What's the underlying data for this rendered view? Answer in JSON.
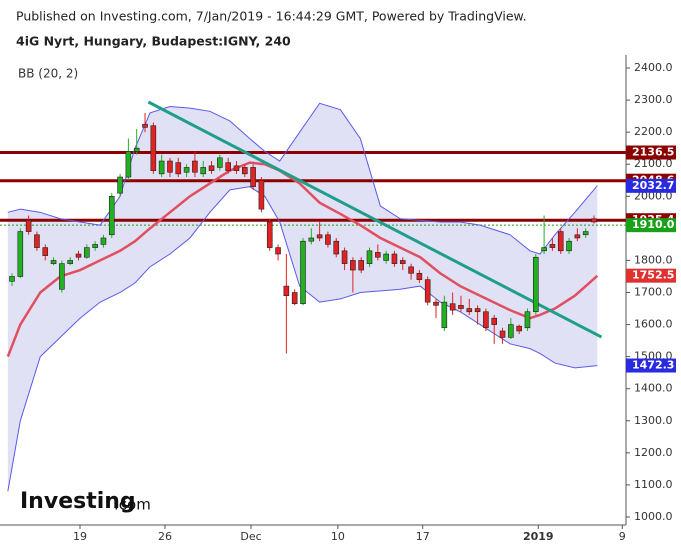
{
  "chart_data": {
    "type": "candlestick",
    "publisher": "Published on Investing.com, 7/Jan/2019 - 16:44:29 GMT, Powered by TradingView.",
    "title": "4iG Nyrt, Hungary, Budapest:IGNY, 240",
    "indicator": "BB (20, 2)",
    "logo": {
      "name": "Investing",
      "suffix": ".com"
    },
    "up_color": "#22b022",
    "down_color": "#e02222",
    "open": [
      1735,
      1750,
      1925,
      1880,
      1840,
      1790,
      1710,
      1790,
      1820,
      1810,
      1840,
      1850,
      1880,
      2010,
      2060,
      2140,
      2225,
      2220,
      2070,
      2110,
      2105,
      2075,
      2110,
      2070,
      2095,
      2090,
      2105,
      2095,
      2090,
      2090,
      2050,
      1920,
      1840,
      1720,
      1700,
      1665,
      1860,
      1880,
      1880,
      1860,
      1830,
      1800,
      1800,
      1790,
      1825,
      1800,
      1820,
      1800,
      1780,
      1760,
      1740,
      1670,
      1590,
      1665,
      1660,
      1650,
      1650,
      1640,
      1620,
      1580,
      1560,
      1595,
      1590,
      1640,
      1830,
      1850,
      1890,
      1830,
      1880,
      1880,
      1930
    ],
    "high": [
      1760,
      1900,
      1940,
      1890,
      1850,
      1810,
      1800,
      1810,
      1830,
      1850,
      1860,
      1880,
      2010,
      2070,
      2180,
      2210,
      2260,
      2230,
      2130,
      2120,
      2120,
      2100,
      2140,
      2110,
      2110,
      2130,
      2120,
      2110,
      2100,
      2100,
      2060,
      1930,
      1850,
      1820,
      1710,
      1870,
      1900,
      1920,
      1890,
      1870,
      1840,
      1810,
      1810,
      1840,
      1850,
      1830,
      1830,
      1810,
      1790,
      1770,
      1750,
      1680,
      1690,
      1700,
      1690,
      1680,
      1660,
      1650,
      1630,
      1590,
      1620,
      1600,
      1650,
      1820,
      1940,
      1870,
      1900,
      1870,
      1900,
      1900,
      1940
    ],
    "low": [
      1720,
      1745,
      1880,
      1830,
      1800,
      1785,
      1700,
      1785,
      1800,
      1805,
      1830,
      1840,
      1870,
      2000,
      2050,
      2130,
      2200,
      2070,
      2060,
      2060,
      2060,
      2060,
      2060,
      2060,
      2070,
      2080,
      2070,
      2070,
      2060,
      2020,
      1950,
      1830,
      1800,
      1510,
      1660,
      1660,
      1850,
      1860,
      1840,
      1810,
      1770,
      1700,
      1760,
      1780,
      1800,
      1790,
      1780,
      1770,
      1740,
      1730,
      1660,
      1620,
      1580,
      1630,
      1640,
      1630,
      1600,
      1580,
      1540,
      1540,
      1555,
      1570,
      1580,
      1630,
      1820,
      1830,
      1820,
      1820,
      1860,
      1870,
      1915
    ],
    "close": [
      1750,
      1890,
      1890,
      1840,
      1815,
      1800,
      1790,
      1800,
      1810,
      1840,
      1850,
      1870,
      2000,
      2060,
      2140,
      2150,
      2215,
      2080,
      2110,
      2075,
      2070,
      2090,
      2075,
      2090,
      2080,
      2120,
      2080,
      2080,
      2070,
      2030,
      1960,
      1840,
      1820,
      1690,
      1665,
      1860,
      1870,
      1870,
      1850,
      1820,
      1790,
      1770,
      1770,
      1830,
      1810,
      1820,
      1790,
      1790,
      1760,
      1740,
      1670,
      1660,
      1670,
      1645,
      1650,
      1640,
      1640,
      1590,
      1600,
      1560,
      1600,
      1580,
      1640,
      1810,
      1840,
      1840,
      1830,
      1860,
      1870,
      1890,
      1920
    ],
    "bands": [
      {
        "name": "upper",
        "color": "#5a5ae6",
        "x": [
          -0.5,
          1,
          3.4,
          5.8,
          8.2,
          10.6,
          13,
          14.8,
          16.6,
          19,
          21.4,
          23.8,
          26.2,
          28.6,
          30.4,
          32.2,
          34.6,
          37,
          39.5,
          41.9,
          44.3,
          46.7,
          49.1,
          51.5,
          53.9,
          56.3,
          59.9,
          62.3,
          63.5,
          65.3,
          67.7,
          70.4
        ],
        "values": [
          1950,
          1960,
          1950,
          1930,
          1920,
          1910,
          2000,
          2150,
          2260,
          2280,
          2275,
          2265,
          2235,
          2180,
          2140,
          2110,
          2200,
          2290,
          2270,
          2180,
          1970,
          1930,
          1925,
          1920,
          1920,
          1910,
          1880,
          1830,
          1820,
          1880,
          1950,
          2033
        ]
      },
      {
        "name": "basis",
        "color": "#e05060",
        "x": [
          -0.5,
          1,
          3.4,
          5.8,
          8.2,
          10.6,
          13,
          14.8,
          16.6,
          19,
          21.4,
          23.8,
          26.2,
          28.6,
          30.4,
          32.2,
          34.6,
          37,
          39.5,
          41.9,
          44.3,
          46.7,
          49.1,
          51.5,
          53.9,
          56.3,
          59.9,
          62.3,
          63.5,
          65.3,
          67.7,
          70.4
        ],
        "values": [
          1500,
          1600,
          1700,
          1750,
          1770,
          1800,
          1830,
          1860,
          1900,
          1950,
          2000,
          2040,
          2080,
          2105,
          2100,
          2080,
          2040,
          1980,
          1945,
          1910,
          1870,
          1840,
          1810,
          1760,
          1720,
          1690,
          1645,
          1620,
          1630,
          1650,
          1690,
          1752
        ]
      },
      {
        "name": "lower",
        "color": "#5a5ae6",
        "x": [
          -0.5,
          1,
          3.4,
          5.8,
          8.2,
          10.6,
          13,
          14.8,
          16.6,
          19,
          21.4,
          23.8,
          26.2,
          28.6,
          30.4,
          32.2,
          34.6,
          37,
          39.5,
          41.9,
          44.3,
          46.7,
          49.1,
          51.5,
          53.9,
          56.3,
          59.9,
          62.3,
          63.5,
          65.3,
          67.7,
          70.4
        ],
        "values": [
          1080,
          1300,
          1500,
          1560,
          1620,
          1670,
          1700,
          1730,
          1780,
          1820,
          1870,
          1950,
          2020,
          2030,
          2000,
          1920,
          1720,
          1670,
          1680,
          1700,
          1705,
          1710,
          1720,
          1670,
          1640,
          1600,
          1540,
          1525,
          1510,
          1480,
          1465,
          1472
        ]
      }
    ],
    "band_fill": "#d9d9f2",
    "trendline": {
      "color": "#1f9e89",
      "x": [
        16.4,
        70.9
      ],
      "values": [
        2294,
        1561
      ]
    },
    "levels": [
      {
        "value": 2136.5,
        "label": "2136.5",
        "color": "#8b0000",
        "line": "solid"
      },
      {
        "value": 2048.6,
        "label": "2048.6",
        "color": "#8b0000",
        "line": "solid"
      },
      {
        "value": 1925.4,
        "label": "1925.4",
        "color": "#8b0000",
        "line": "solid"
      },
      {
        "value": 1910.0,
        "label": "1910.0",
        "color": "#18a018",
        "line": "dashed"
      }
    ],
    "price_labels": [
      {
        "value": 2032.7,
        "label": "2032.7",
        "color": "#2a2ae0"
      },
      {
        "value": 1752.5,
        "label": "1752.5",
        "color": "#e03030"
      },
      {
        "value": 1472.3,
        "label": "1472.3",
        "color": "#2a2ae0"
      }
    ],
    "xlim": [
      -0.48,
      73.85
    ],
    "xticks": [
      {
        "value": 8.18,
        "label": "19"
      },
      {
        "value": 18.4,
        "label": "26"
      },
      {
        "value": 28.75,
        "label": "Dec"
      },
      {
        "value": 39.2,
        "label": "10"
      },
      {
        "value": 49.4,
        "label": "17"
      },
      {
        "value": 63.3,
        "label": "2019"
      },
      {
        "value": 73.4,
        "label": "9"
      }
    ],
    "ylim": [
      975,
      2425
    ],
    "yticks": [
      {
        "value": 1000,
        "label": "1000.0"
      },
      {
        "value": 1100,
        "label": "1100.0"
      },
      {
        "value": 1200,
        "label": "1200.0"
      },
      {
        "value": 1300,
        "label": "1300.0"
      },
      {
        "value": 1400,
        "label": "1400.0"
      },
      {
        "value": 1500,
        "label": "1500.0"
      },
      {
        "value": 1600,
        "label": "1600.0"
      },
      {
        "value": 1700,
        "label": "1700.0"
      },
      {
        "value": 1800,
        "label": "1800.0"
      },
      {
        "value": 1900,
        "label": "1900.0"
      },
      {
        "value": 2000,
        "label": "2000.0"
      },
      {
        "value": 2100,
        "label": "2100.0"
      },
      {
        "value": 2200,
        "label": "2200.0"
      },
      {
        "value": 2300,
        "label": "2300.0"
      },
      {
        "value": 2400,
        "label": "2400.0"
      }
    ]
  }
}
